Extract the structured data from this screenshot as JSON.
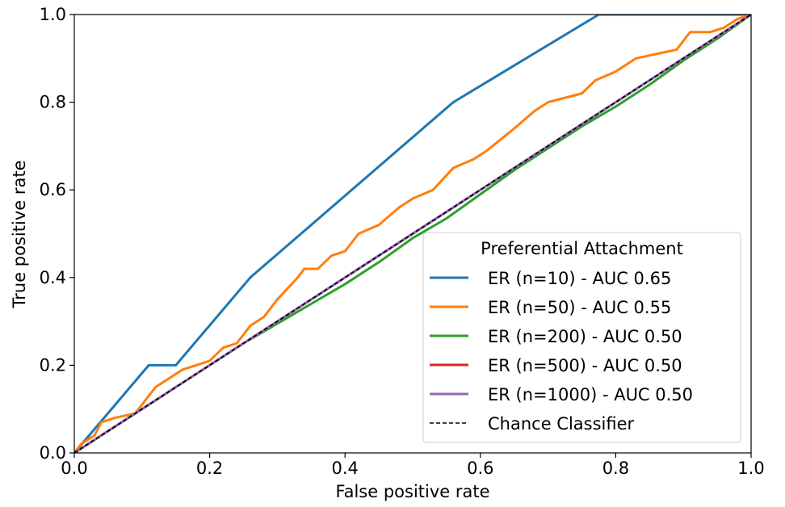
{
  "chart_data": {
    "type": "line",
    "title": "",
    "xlabel": "False positive rate",
    "ylabel": "True positive rate",
    "xlim": [
      0.0,
      1.0
    ],
    "ylim": [
      0.0,
      1.0
    ],
    "xticks": [
      "0.0",
      "0.2",
      "0.4",
      "0.6",
      "0.8",
      "1.0"
    ],
    "yticks": [
      "0.0",
      "0.2",
      "0.4",
      "0.6",
      "0.8",
      "1.0"
    ],
    "grid": false,
    "legend": {
      "title": "Preferential Attachment",
      "placement": "lower-right"
    },
    "series": [
      {
        "name": "ER (n=10) - AUC 0.65",
        "color": "#1f77b4",
        "style": "solid",
        "points": [
          [
            0.0,
            0.0
          ],
          [
            0.11,
            0.2
          ],
          [
            0.15,
            0.2
          ],
          [
            0.26,
            0.4
          ],
          [
            0.56,
            0.8
          ],
          [
            0.775,
            1.0
          ],
          [
            1.0,
            1.0
          ]
        ]
      },
      {
        "name": "ER (n=50) - AUC 0.55",
        "color": "#ff7f0e",
        "style": "solid",
        "points": [
          [
            0.0,
            0.0
          ],
          [
            0.01,
            0.02
          ],
          [
            0.03,
            0.04
          ],
          [
            0.04,
            0.07
          ],
          [
            0.06,
            0.08
          ],
          [
            0.09,
            0.09
          ],
          [
            0.1,
            0.11
          ],
          [
            0.11,
            0.13
          ],
          [
            0.12,
            0.15
          ],
          [
            0.14,
            0.17
          ],
          [
            0.16,
            0.19
          ],
          [
            0.18,
            0.2
          ],
          [
            0.2,
            0.21
          ],
          [
            0.22,
            0.24
          ],
          [
            0.24,
            0.25
          ],
          [
            0.26,
            0.29
          ],
          [
            0.28,
            0.31
          ],
          [
            0.3,
            0.35
          ],
          [
            0.33,
            0.4
          ],
          [
            0.34,
            0.42
          ],
          [
            0.36,
            0.42
          ],
          [
            0.38,
            0.45
          ],
          [
            0.4,
            0.46
          ],
          [
            0.41,
            0.48
          ],
          [
            0.42,
            0.5
          ],
          [
            0.45,
            0.52
          ],
          [
            0.48,
            0.56
          ],
          [
            0.5,
            0.58
          ],
          [
            0.53,
            0.6
          ],
          [
            0.56,
            0.65
          ],
          [
            0.59,
            0.67
          ],
          [
            0.61,
            0.69
          ],
          [
            0.65,
            0.74
          ],
          [
            0.68,
            0.78
          ],
          [
            0.7,
            0.8
          ],
          [
            0.75,
            0.82
          ],
          [
            0.77,
            0.85
          ],
          [
            0.8,
            0.87
          ],
          [
            0.83,
            0.9
          ],
          [
            0.86,
            0.91
          ],
          [
            0.89,
            0.92
          ],
          [
            0.91,
            0.96
          ],
          [
            0.94,
            0.96
          ],
          [
            0.96,
            0.97
          ],
          [
            0.98,
            0.99
          ],
          [
            1.0,
            1.0
          ]
        ]
      },
      {
        "name": "ER (n=200) - AUC 0.50",
        "color": "#2ca02c",
        "style": "solid",
        "points": [
          [
            0.0,
            0.0
          ],
          [
            0.05,
            0.05
          ],
          [
            0.1,
            0.1
          ],
          [
            0.15,
            0.15
          ],
          [
            0.2,
            0.2
          ],
          [
            0.25,
            0.25
          ],
          [
            0.3,
            0.295
          ],
          [
            0.35,
            0.34
          ],
          [
            0.4,
            0.385
          ],
          [
            0.45,
            0.435
          ],
          [
            0.5,
            0.49
          ],
          [
            0.55,
            0.535
          ],
          [
            0.6,
            0.59
          ],
          [
            0.65,
            0.645
          ],
          [
            0.7,
            0.695
          ],
          [
            0.75,
            0.745
          ],
          [
            0.8,
            0.79
          ],
          [
            0.85,
            0.84
          ],
          [
            0.9,
            0.895
          ],
          [
            0.95,
            0.945
          ],
          [
            1.0,
            1.0
          ]
        ]
      },
      {
        "name": "ER (n=500) - AUC 0.50",
        "color": "#d62728",
        "style": "solid",
        "points": [
          [
            0.0,
            0.0
          ],
          [
            0.1,
            0.1
          ],
          [
            0.2,
            0.2
          ],
          [
            0.3,
            0.3
          ],
          [
            0.4,
            0.4
          ],
          [
            0.5,
            0.5
          ],
          [
            0.6,
            0.6
          ],
          [
            0.7,
            0.7
          ],
          [
            0.8,
            0.8
          ],
          [
            0.9,
            0.9
          ],
          [
            1.0,
            1.0
          ]
        ]
      },
      {
        "name": "ER (n=1000) - AUC 0.50",
        "color": "#9467bd",
        "style": "solid",
        "points": [
          [
            0.0,
            0.0
          ],
          [
            0.1,
            0.1
          ],
          [
            0.2,
            0.2
          ],
          [
            0.3,
            0.3
          ],
          [
            0.4,
            0.4
          ],
          [
            0.5,
            0.5
          ],
          [
            0.6,
            0.6
          ],
          [
            0.7,
            0.7
          ],
          [
            0.8,
            0.8
          ],
          [
            0.9,
            0.9
          ],
          [
            1.0,
            1.0
          ]
        ]
      },
      {
        "name": "Chance Classifier",
        "color": "#000000",
        "style": "dashed",
        "points": [
          [
            0.0,
            0.0
          ],
          [
            1.0,
            1.0
          ]
        ]
      }
    ]
  }
}
